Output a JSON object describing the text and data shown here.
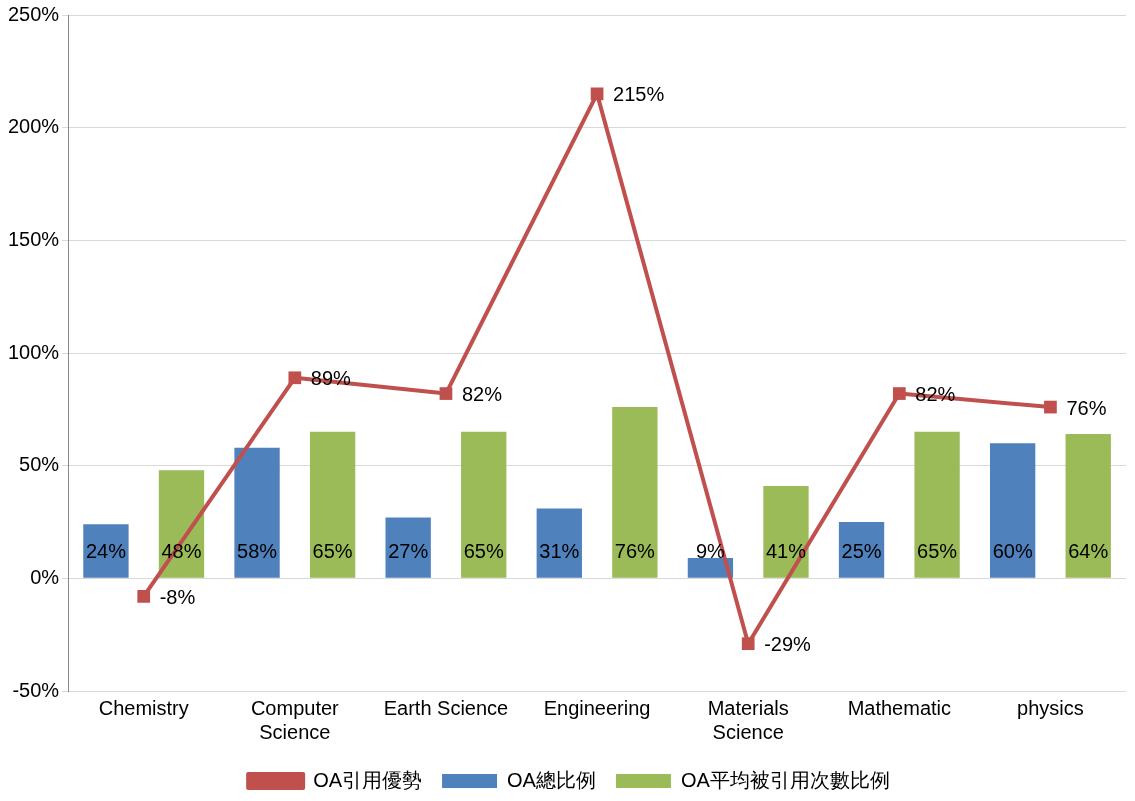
{
  "chart_data": {
    "type": "bar",
    "categories": [
      "Chemistry",
      "Computer Science",
      "Earth Science",
      "Engineering",
      "Materials Science",
      "Mathematic",
      "physics"
    ],
    "series": [
      {
        "name": "OA總比例",
        "color": "#4f81bd",
        "values": [
          24,
          58,
          27,
          31,
          9,
          25,
          60
        ],
        "value_labels": [
          "24%",
          "58%",
          "27%",
          "31%",
          "9%",
          "25%",
          "60%"
        ]
      },
      {
        "name": "OA平均被引用次數比例",
        "color": "#9bbb59",
        "values": [
          48,
          65,
          65,
          76,
          41,
          65,
          64
        ],
        "value_labels": [
          "48%",
          "65%",
          "65%",
          "76%",
          "41%",
          "65%",
          "64%"
        ]
      },
      {
        "name": "OA引用優勢",
        "type": "line",
        "color": "#c0504d",
        "marker": "square",
        "values": [
          -8,
          89,
          82,
          215,
          -29,
          82,
          76
        ],
        "value_labels": [
          "-8%",
          "89%",
          "82%",
          "215%",
          "-29%",
          "82%",
          "76%"
        ]
      }
    ],
    "ylim": [
      -50,
      250
    ],
    "yticks": [
      {
        "value": -50,
        "label": "-50%"
      },
      {
        "value": 0,
        "label": "0%"
      },
      {
        "value": 50,
        "label": "50%"
      },
      {
        "value": 100,
        "label": "100%"
      },
      {
        "value": 150,
        "label": "150%"
      },
      {
        "value": 200,
        "label": "200%"
      },
      {
        "value": 250,
        "label": "250%"
      }
    ],
    "grid": "y",
    "legend": "bottom"
  }
}
